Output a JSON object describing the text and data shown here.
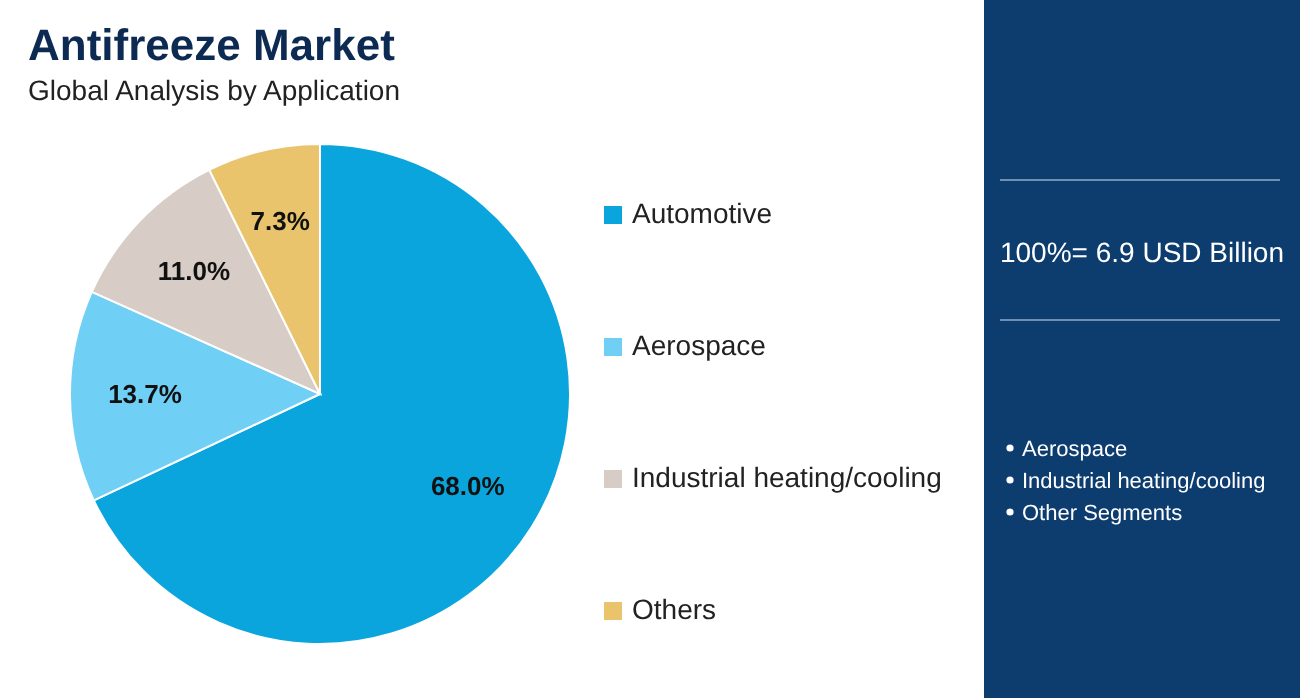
{
  "chart_data": {
    "type": "pie",
    "title": "Antifreeze Market",
    "subtitle": "Global Analysis by Application",
    "categories": [
      "Automotive",
      "Aerospace",
      "Industrial heating/cooling",
      "Others"
    ],
    "values": [
      68.0,
      13.7,
      11.0,
      7.3
    ],
    "colors": [
      "#0ba5de",
      "#6fcff5",
      "#d8cdc6",
      "#e9c46c"
    ],
    "value_labels": [
      "68.0%",
      "13.7%",
      "11.0%",
      "7.3%"
    ],
    "legend": "right",
    "annotations": [
      "100%= 6.9 USD Billion",
      "Aerospace",
      "Industrial heating/cooling",
      "Other Segments"
    ]
  }
}
